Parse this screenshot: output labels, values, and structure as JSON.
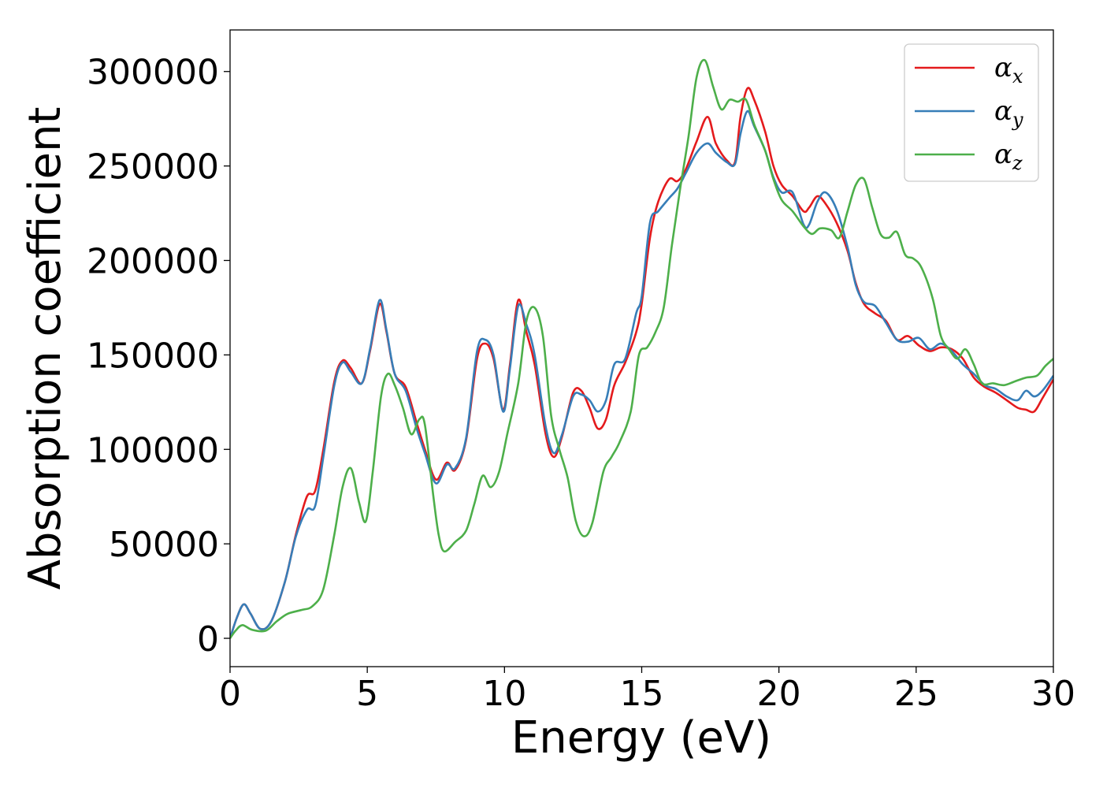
{
  "chart_data": {
    "type": "line",
    "title": "",
    "xlabel": "Energy (eV)",
    "ylabel": "Absorption coefficient",
    "xlim": [
      0,
      30
    ],
    "ylim": [
      -15000,
      322000
    ],
    "xticks": [
      "0",
      "5",
      "10",
      "15",
      "20",
      "25",
      "30"
    ],
    "yticks": [
      "0",
      "50000",
      "100000",
      "150000",
      "200000",
      "250000",
      "300000"
    ],
    "grid": false,
    "legend": {
      "position": "top-right"
    },
    "series": [
      {
        "name": "α",
        "sub": "x",
        "color": "#e41a1c",
        "points": [
          [
            0,
            0
          ],
          [
            0.25,
            11000
          ],
          [
            0.5,
            18000
          ],
          [
            0.75,
            13000
          ],
          [
            1.1,
            5000
          ],
          [
            1.5,
            9000
          ],
          [
            2.0,
            30000
          ],
          [
            2.4,
            55000
          ],
          [
            2.8,
            75000
          ],
          [
            3.1,
            78000
          ],
          [
            3.4,
            100000
          ],
          [
            3.8,
            136000
          ],
          [
            4.1,
            147000
          ],
          [
            4.4,
            143000
          ],
          [
            4.8,
            135000
          ],
          [
            5.1,
            152000
          ],
          [
            5.45,
            177000
          ],
          [
            5.7,
            162000
          ],
          [
            6.0,
            140000
          ],
          [
            6.4,
            133000
          ],
          [
            6.8,
            114000
          ],
          [
            7.1,
            100000
          ],
          [
            7.5,
            84000
          ],
          [
            7.9,
            93000
          ],
          [
            8.2,
            89000
          ],
          [
            8.6,
            105000
          ],
          [
            9.0,
            148000
          ],
          [
            9.3,
            156000
          ],
          [
            9.6,
            148000
          ],
          [
            9.95,
            121000
          ],
          [
            10.2,
            145000
          ],
          [
            10.5,
            179000
          ],
          [
            10.8,
            162000
          ],
          [
            11.1,
            145000
          ],
          [
            11.5,
            108000
          ],
          [
            11.8,
            96000
          ],
          [
            12.1,
            107000
          ],
          [
            12.5,
            130000
          ],
          [
            12.8,
            131000
          ],
          [
            13.1,
            122000
          ],
          [
            13.4,
            111000
          ],
          [
            13.7,
            116000
          ],
          [
            14.0,
            134000
          ],
          [
            14.4,
            146000
          ],
          [
            14.8,
            162000
          ],
          [
            15.0,
            177000
          ],
          [
            15.3,
            212000
          ],
          [
            15.6,
            231000
          ],
          [
            16.0,
            243000
          ],
          [
            16.3,
            242000
          ],
          [
            16.6,
            248000
          ],
          [
            17.0,
            263000
          ],
          [
            17.4,
            276000
          ],
          [
            17.7,
            262000
          ],
          [
            18.1,
            253000
          ],
          [
            18.4,
            252000
          ],
          [
            18.6,
            276000
          ],
          [
            18.85,
            291000
          ],
          [
            19.1,
            285000
          ],
          [
            19.5,
            268000
          ],
          [
            19.8,
            250000
          ],
          [
            20.1,
            240000
          ],
          [
            20.5,
            234000
          ],
          [
            20.9,
            226000
          ],
          [
            21.1,
            228000
          ],
          [
            21.4,
            234000
          ],
          [
            21.7,
            230000
          ],
          [
            22.1,
            220000
          ],
          [
            22.5,
            205000
          ],
          [
            22.8,
            188000
          ],
          [
            23.1,
            177000
          ],
          [
            23.5,
            172000
          ],
          [
            23.9,
            168000
          ],
          [
            24.3,
            158000
          ],
          [
            24.7,
            160000
          ],
          [
            25.1,
            155000
          ],
          [
            25.5,
            152000
          ],
          [
            25.9,
            154000
          ],
          [
            26.3,
            153000
          ],
          [
            26.7,
            148000
          ],
          [
            27.1,
            138000
          ],
          [
            27.5,
            133000
          ],
          [
            27.9,
            130000
          ],
          [
            28.3,
            126000
          ],
          [
            28.7,
            122000
          ],
          [
            29.0,
            121000
          ],
          [
            29.3,
            120000
          ],
          [
            29.6,
            127000
          ],
          [
            30.0,
            137000
          ]
        ]
      },
      {
        "name": "α",
        "sub": "y",
        "color": "#377eb8",
        "points": [
          [
            0,
            0
          ],
          [
            0.25,
            11000
          ],
          [
            0.5,
            18000
          ],
          [
            0.75,
            13000
          ],
          [
            1.1,
            5000
          ],
          [
            1.5,
            9000
          ],
          [
            2.0,
            30000
          ],
          [
            2.4,
            54000
          ],
          [
            2.8,
            68000
          ],
          [
            3.1,
            70000
          ],
          [
            3.4,
            96000
          ],
          [
            3.8,
            134000
          ],
          [
            4.1,
            146000
          ],
          [
            4.4,
            141000
          ],
          [
            4.8,
            135000
          ],
          [
            5.1,
            153000
          ],
          [
            5.45,
            179000
          ],
          [
            5.7,
            163000
          ],
          [
            6.0,
            140000
          ],
          [
            6.4,
            131000
          ],
          [
            6.8,
            111000
          ],
          [
            7.1,
            98000
          ],
          [
            7.5,
            82000
          ],
          [
            7.9,
            92000
          ],
          [
            8.2,
            90000
          ],
          [
            8.6,
            106000
          ],
          [
            9.0,
            152000
          ],
          [
            9.3,
            158000
          ],
          [
            9.6,
            150000
          ],
          [
            9.95,
            120000
          ],
          [
            10.2,
            143000
          ],
          [
            10.5,
            176000
          ],
          [
            10.8,
            166000
          ],
          [
            11.1,
            150000
          ],
          [
            11.5,
            112000
          ],
          [
            11.8,
            98000
          ],
          [
            12.1,
            108000
          ],
          [
            12.5,
            128000
          ],
          [
            12.8,
            129000
          ],
          [
            13.1,
            126000
          ],
          [
            13.4,
            120000
          ],
          [
            13.7,
            126000
          ],
          [
            14.0,
            145000
          ],
          [
            14.4,
            148000
          ],
          [
            14.8,
            172000
          ],
          [
            15.0,
            181000
          ],
          [
            15.3,
            220000
          ],
          [
            15.6,
            226000
          ],
          [
            16.0,
            233000
          ],
          [
            16.3,
            238000
          ],
          [
            16.6,
            246000
          ],
          [
            17.0,
            257000
          ],
          [
            17.4,
            262000
          ],
          [
            17.7,
            257000
          ],
          [
            18.1,
            252000
          ],
          [
            18.4,
            251000
          ],
          [
            18.6,
            267000
          ],
          [
            18.85,
            279000
          ],
          [
            19.1,
            271000
          ],
          [
            19.5,
            258000
          ],
          [
            19.8,
            244000
          ],
          [
            20.1,
            236000
          ],
          [
            20.5,
            236000
          ],
          [
            20.9,
            219000
          ],
          [
            21.1,
            219000
          ],
          [
            21.4,
            231000
          ],
          [
            21.7,
            236000
          ],
          [
            22.1,
            227000
          ],
          [
            22.5,
            207000
          ],
          [
            22.8,
            187000
          ],
          [
            23.1,
            178000
          ],
          [
            23.5,
            176000
          ],
          [
            23.9,
            167000
          ],
          [
            24.3,
            158000
          ],
          [
            24.7,
            157000
          ],
          [
            25.1,
            159000
          ],
          [
            25.5,
            153000
          ],
          [
            25.9,
            156000
          ],
          [
            26.3,
            152000
          ],
          [
            26.7,
            145000
          ],
          [
            27.1,
            140000
          ],
          [
            27.5,
            134000
          ],
          [
            27.9,
            132000
          ],
          [
            28.3,
            128000
          ],
          [
            28.7,
            126000
          ],
          [
            29.0,
            131000
          ],
          [
            29.3,
            128000
          ],
          [
            29.6,
            131000
          ],
          [
            30.0,
            139000
          ]
        ]
      },
      {
        "name": "α",
        "sub": "z",
        "color": "#4daf4a",
        "points": [
          [
            0,
            0
          ],
          [
            0.2,
            4000
          ],
          [
            0.45,
            7000
          ],
          [
            0.8,
            4500
          ],
          [
            1.3,
            4000
          ],
          [
            1.7,
            9000
          ],
          [
            2.1,
            13000
          ],
          [
            2.6,
            15000
          ],
          [
            3.0,
            17000
          ],
          [
            3.4,
            26000
          ],
          [
            3.8,
            55000
          ],
          [
            4.1,
            80000
          ],
          [
            4.4,
            90000
          ],
          [
            4.7,
            72000
          ],
          [
            4.95,
            62000
          ],
          [
            5.2,
            88000
          ],
          [
            5.5,
            128000
          ],
          [
            5.75,
            140000
          ],
          [
            6.0,
            134000
          ],
          [
            6.3,
            122000
          ],
          [
            6.6,
            108000
          ],
          [
            6.9,
            116000
          ],
          [
            7.1,
            113000
          ],
          [
            7.4,
            76000
          ],
          [
            7.6,
            55000
          ],
          [
            7.8,
            46000
          ],
          [
            8.2,
            51000
          ],
          [
            8.6,
            57000
          ],
          [
            8.9,
            71000
          ],
          [
            9.2,
            86000
          ],
          [
            9.5,
            80000
          ],
          [
            9.8,
            88000
          ],
          [
            10.1,
            108000
          ],
          [
            10.5,
            135000
          ],
          [
            10.8,
            168000
          ],
          [
            11.1,
            175000
          ],
          [
            11.4,
            160000
          ],
          [
            11.7,
            118000
          ],
          [
            12.0,
            100000
          ],
          [
            12.3,
            85000
          ],
          [
            12.6,
            62000
          ],
          [
            12.9,
            54000
          ],
          [
            13.2,
            61000
          ],
          [
            13.6,
            88000
          ],
          [
            13.9,
            96000
          ],
          [
            14.2,
            104000
          ],
          [
            14.6,
            120000
          ],
          [
            14.9,
            150000
          ],
          [
            15.2,
            154000
          ],
          [
            15.5,
            162000
          ],
          [
            15.8,
            175000
          ],
          [
            16.1,
            208000
          ],
          [
            16.4,
            238000
          ],
          [
            16.7,
            265000
          ],
          [
            17.0,
            297000
          ],
          [
            17.3,
            306000
          ],
          [
            17.6,
            292000
          ],
          [
            17.9,
            280000
          ],
          [
            18.2,
            285000
          ],
          [
            18.5,
            284000
          ],
          [
            18.8,
            285000
          ],
          [
            19.1,
            272000
          ],
          [
            19.5,
            258000
          ],
          [
            19.8,
            243000
          ],
          [
            20.1,
            232000
          ],
          [
            20.5,
            226000
          ],
          [
            20.9,
            218000
          ],
          [
            21.2,
            214000
          ],
          [
            21.5,
            217000
          ],
          [
            21.9,
            216000
          ],
          [
            22.2,
            212000
          ],
          [
            22.5,
            226000
          ],
          [
            22.8,
            240000
          ],
          [
            23.1,
            243000
          ],
          [
            23.4,
            228000
          ],
          [
            23.7,
            214000
          ],
          [
            24.0,
            212000
          ],
          [
            24.3,
            215000
          ],
          [
            24.6,
            203000
          ],
          [
            24.9,
            201000
          ],
          [
            25.2,
            196000
          ],
          [
            25.6,
            180000
          ],
          [
            25.9,
            160000
          ],
          [
            26.2,
            153000
          ],
          [
            26.5,
            148000
          ],
          [
            26.8,
            153000
          ],
          [
            27.1,
            145000
          ],
          [
            27.4,
            135000
          ],
          [
            27.8,
            135000
          ],
          [
            28.2,
            134000
          ],
          [
            28.6,
            136000
          ],
          [
            29.0,
            138000
          ],
          [
            29.4,
            139000
          ],
          [
            29.7,
            144000
          ],
          [
            30.0,
            148000
          ]
        ]
      }
    ]
  }
}
